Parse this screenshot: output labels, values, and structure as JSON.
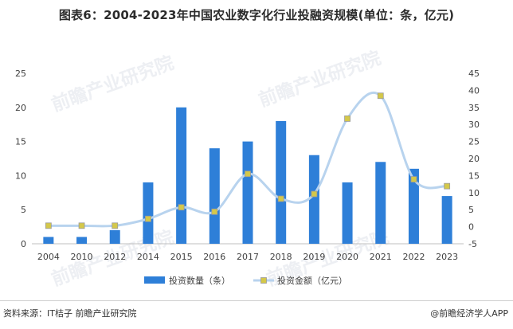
{
  "title": "图表6：2004-2023年中国农业数字化行业投融资规模(单位：条，亿元)",
  "watermark": "前瞻产业研究院",
  "source": "资料来源：IT桔子 前瞻产业研究院",
  "credit": "@前瞻经济学人APP",
  "chart_data": {
    "type": "bar",
    "categories": [
      "2004",
      "2010",
      "2012",
      "2014",
      "2015",
      "2016",
      "2017",
      "2018",
      "2019",
      "2020",
      "2021",
      "2022",
      "2023"
    ],
    "series": [
      {
        "name": "投资数量（条）",
        "type": "bar",
        "axis": "left",
        "color": "#2e7fd8",
        "values": [
          1,
          1,
          2,
          9,
          20,
          14,
          15,
          18,
          13,
          9,
          12,
          11,
          7
        ]
      },
      {
        "name": "投资金额（亿元）",
        "type": "line",
        "axis": "right",
        "color": "#b8d3ee",
        "marker_color": "#d4c84a",
        "values": [
          0.3,
          0.3,
          0.3,
          2.3,
          5.7,
          4.4,
          15.5,
          8.2,
          9.6,
          31.7,
          38.4,
          13.9,
          11.9
        ]
      }
    ],
    "y_left": {
      "ylim": [
        0,
        25
      ],
      "ticks": [
        "0",
        "5",
        "10",
        "15",
        "20",
        "25"
      ]
    },
    "y_right": {
      "ylim": [
        -5,
        45
      ],
      "ticks": [
        "-5",
        "0",
        "5",
        "10",
        "15",
        "20",
        "25",
        "30",
        "35",
        "40",
        "45"
      ]
    },
    "legend_position": "bottom",
    "grid": false
  }
}
